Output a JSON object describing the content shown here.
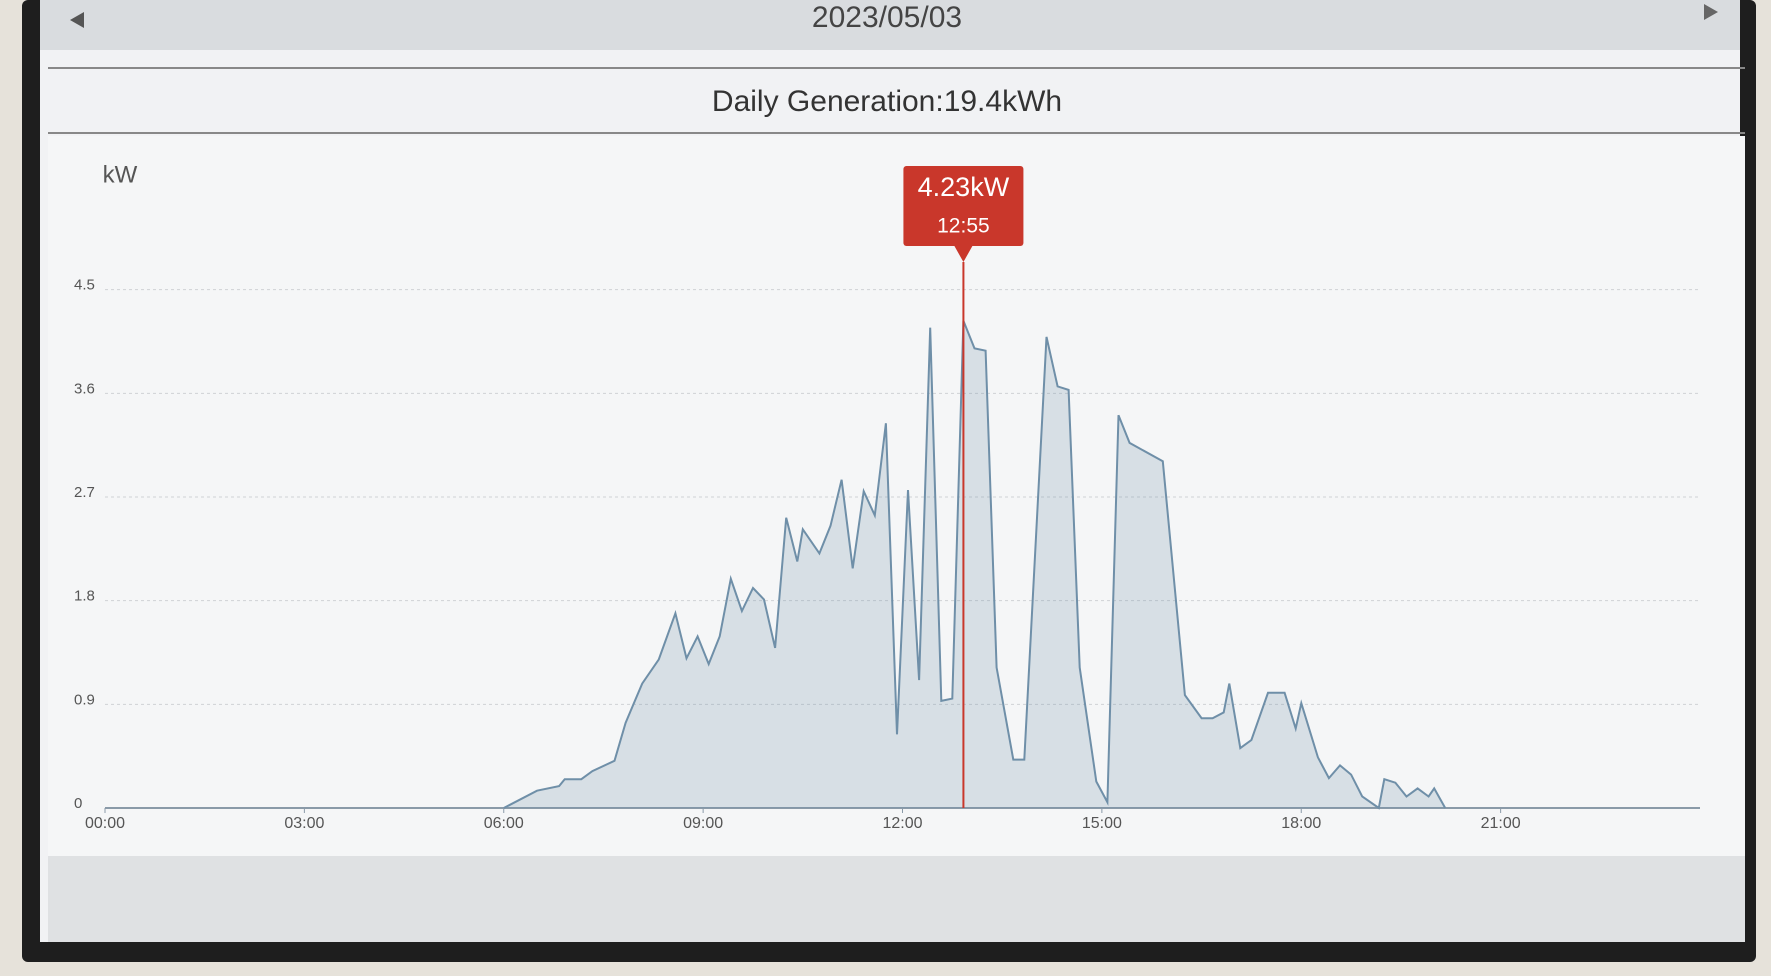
{
  "header": {
    "date": "2023/05/03",
    "title": "Daily Generation:19.4kWh"
  },
  "chart_data": {
    "type": "area",
    "y_label": "kW",
    "color": "#6f8fa8",
    "grid": true,
    "ylim": [
      0,
      5.4
    ],
    "yticks": [
      0,
      0.9,
      1.8,
      2.7,
      3.6,
      4.5
    ],
    "xlim": [
      "00:00",
      "24:00"
    ],
    "xticks": [
      "00:00",
      "03:00",
      "06:00",
      "09:00",
      "12:00",
      "15:00",
      "18:00",
      "21:00"
    ],
    "x": [
      "06:00",
      "06:30",
      "06:50",
      "06:55",
      "07:10",
      "07:20",
      "07:40",
      "07:50",
      "08:05",
      "08:20",
      "08:35",
      "08:45",
      "08:55",
      "09:05",
      "09:15",
      "09:25",
      "09:35",
      "09:45",
      "09:55",
      "10:05",
      "10:15",
      "10:25",
      "10:30",
      "10:45",
      "10:55",
      "11:05",
      "11:15",
      "11:25",
      "11:35",
      "11:45",
      "11:55",
      "12:05",
      "12:15",
      "12:25",
      "12:35",
      "12:45",
      "12:55",
      "13:05",
      "13:15",
      "13:25",
      "13:40",
      "13:50",
      "14:10",
      "14:20",
      "14:30",
      "14:40",
      "14:55",
      "15:05",
      "15:15",
      "15:25",
      "15:55",
      "16:15",
      "16:30",
      "16:40",
      "16:50",
      "16:55",
      "17:05",
      "17:15",
      "17:30",
      "17:45",
      "17:55",
      "18:00",
      "18:15",
      "18:25",
      "18:35",
      "18:45",
      "18:55",
      "19:10",
      "19:15",
      "19:25",
      "19:35",
      "19:45",
      "19:55",
      "20:00",
      "20:10"
    ],
    "values": [
      0,
      0.15,
      0.19,
      0.25,
      0.25,
      0.32,
      0.41,
      0.74,
      1.08,
      1.29,
      1.69,
      1.3,
      1.49,
      1.25,
      1.49,
      1.99,
      1.71,
      1.91,
      1.81,
      1.39,
      2.52,
      2.14,
      2.42,
      2.21,
      2.45,
      2.85,
      2.08,
      2.75,
      2.54,
      3.34,
      0.64,
      2.76,
      1.11,
      4.17,
      0.93,
      0.95,
      4.23,
      3.99,
      3.97,
      1.22,
      0.42,
      0.42,
      4.09,
      3.66,
      3.63,
      1.22,
      0.23,
      0.05,
      3.41,
      3.17,
      3.01,
      0.98,
      0.78,
      0.78,
      0.83,
      1.08,
      0.52,
      0.59,
      1.0,
      1.0,
      0.69,
      0.91,
      0.44,
      0.26,
      0.37,
      0.29,
      0.1,
      0,
      0.25,
      0.22,
      0.1,
      0.17,
      0.1,
      0.17,
      0
    ],
    "annotation": {
      "x": "12:55",
      "value": 4.23,
      "label": "4.23kW"
    }
  }
}
